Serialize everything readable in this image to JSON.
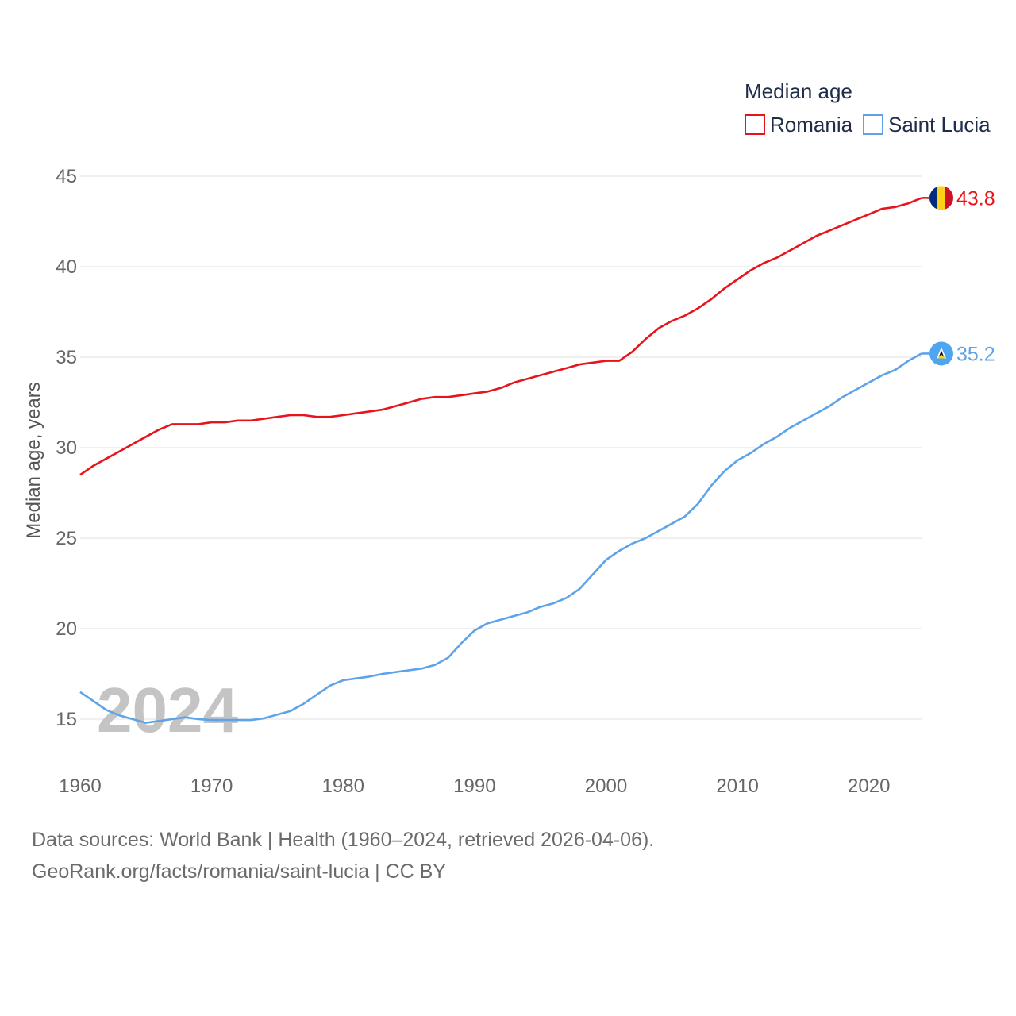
{
  "chart_data": {
    "type": "line",
    "legend_title": "Median age",
    "ylabel": "Median age, years",
    "xlabel": "",
    "x_ticks": [
      1960,
      1970,
      1980,
      1990,
      2000,
      2010,
      2020
    ],
    "y_ticks": [
      15,
      20,
      25,
      30,
      35,
      40,
      45
    ],
    "xlim": [
      1960,
      2024
    ],
    "ylim": [
      13,
      46
    ],
    "current_year_label": "2024",
    "legend_position": "top-right",
    "x": [
      1960,
      1961,
      1962,
      1963,
      1964,
      1965,
      1966,
      1967,
      1968,
      1969,
      1970,
      1971,
      1972,
      1973,
      1974,
      1975,
      1976,
      1977,
      1978,
      1979,
      1980,
      1981,
      1982,
      1983,
      1984,
      1985,
      1986,
      1987,
      1988,
      1989,
      1990,
      1991,
      1992,
      1993,
      1994,
      1995,
      1996,
      1997,
      1998,
      1999,
      2000,
      2001,
      2002,
      2003,
      2004,
      2005,
      2006,
      2007,
      2008,
      2009,
      2010,
      2011,
      2012,
      2013,
      2014,
      2015,
      2016,
      2017,
      2018,
      2019,
      2020,
      2021,
      2022,
      2023,
      2024
    ],
    "series": [
      {
        "name": "Romania",
        "color": "#e8141b",
        "flag": "romania-flag",
        "end_label": "43.8",
        "values": [
          28.5,
          29.0,
          29.4,
          29.8,
          30.2,
          30.6,
          31.0,
          31.3,
          31.3,
          31.3,
          31.4,
          31.4,
          31.5,
          31.5,
          31.6,
          31.7,
          31.8,
          31.8,
          31.7,
          31.7,
          31.8,
          31.9,
          32.0,
          32.1,
          32.3,
          32.5,
          32.7,
          32.8,
          32.8,
          32.9,
          33.0,
          33.1,
          33.3,
          33.6,
          33.8,
          34.0,
          34.2,
          34.4,
          34.6,
          34.7,
          34.8,
          34.8,
          35.3,
          36.0,
          36.6,
          37.0,
          37.3,
          37.7,
          38.2,
          38.8,
          39.3,
          39.8,
          40.2,
          40.5,
          40.9,
          41.3,
          41.7,
          42.0,
          42.3,
          42.6,
          42.9,
          43.2,
          43.3,
          43.5,
          43.8
        ]
      },
      {
        "name": "Saint Lucia",
        "color": "#5ea3e8",
        "flag": "saint-lucia-flag",
        "end_label": "35.2",
        "values": [
          16.5,
          16.0,
          15.5,
          15.2,
          15.0,
          14.8,
          14.9,
          15.0,
          15.1,
          15.0,
          14.95,
          14.95,
          14.95,
          14.95,
          15.05,
          15.25,
          15.45,
          15.85,
          16.35,
          16.85,
          17.15,
          17.25,
          17.35,
          17.5,
          17.6,
          17.7,
          17.8,
          18.0,
          18.4,
          19.2,
          19.9,
          20.3,
          20.5,
          20.7,
          20.9,
          21.2,
          21.4,
          21.7,
          22.2,
          23.0,
          23.8,
          24.3,
          24.7,
          25.0,
          25.4,
          25.8,
          26.2,
          26.9,
          27.9,
          28.7,
          29.3,
          29.7,
          30.2,
          30.6,
          31.1,
          31.5,
          31.9,
          32.3,
          32.8,
          33.2,
          33.6,
          34.0,
          34.3,
          34.8,
          35.2
        ]
      }
    ]
  },
  "footer": {
    "sources": "Data sources: World Bank | Health (1960–2024, retrieved 2026-04-06).",
    "attribution": "GeoRank.org/facts/romania/saint-lucia | CC BY"
  }
}
